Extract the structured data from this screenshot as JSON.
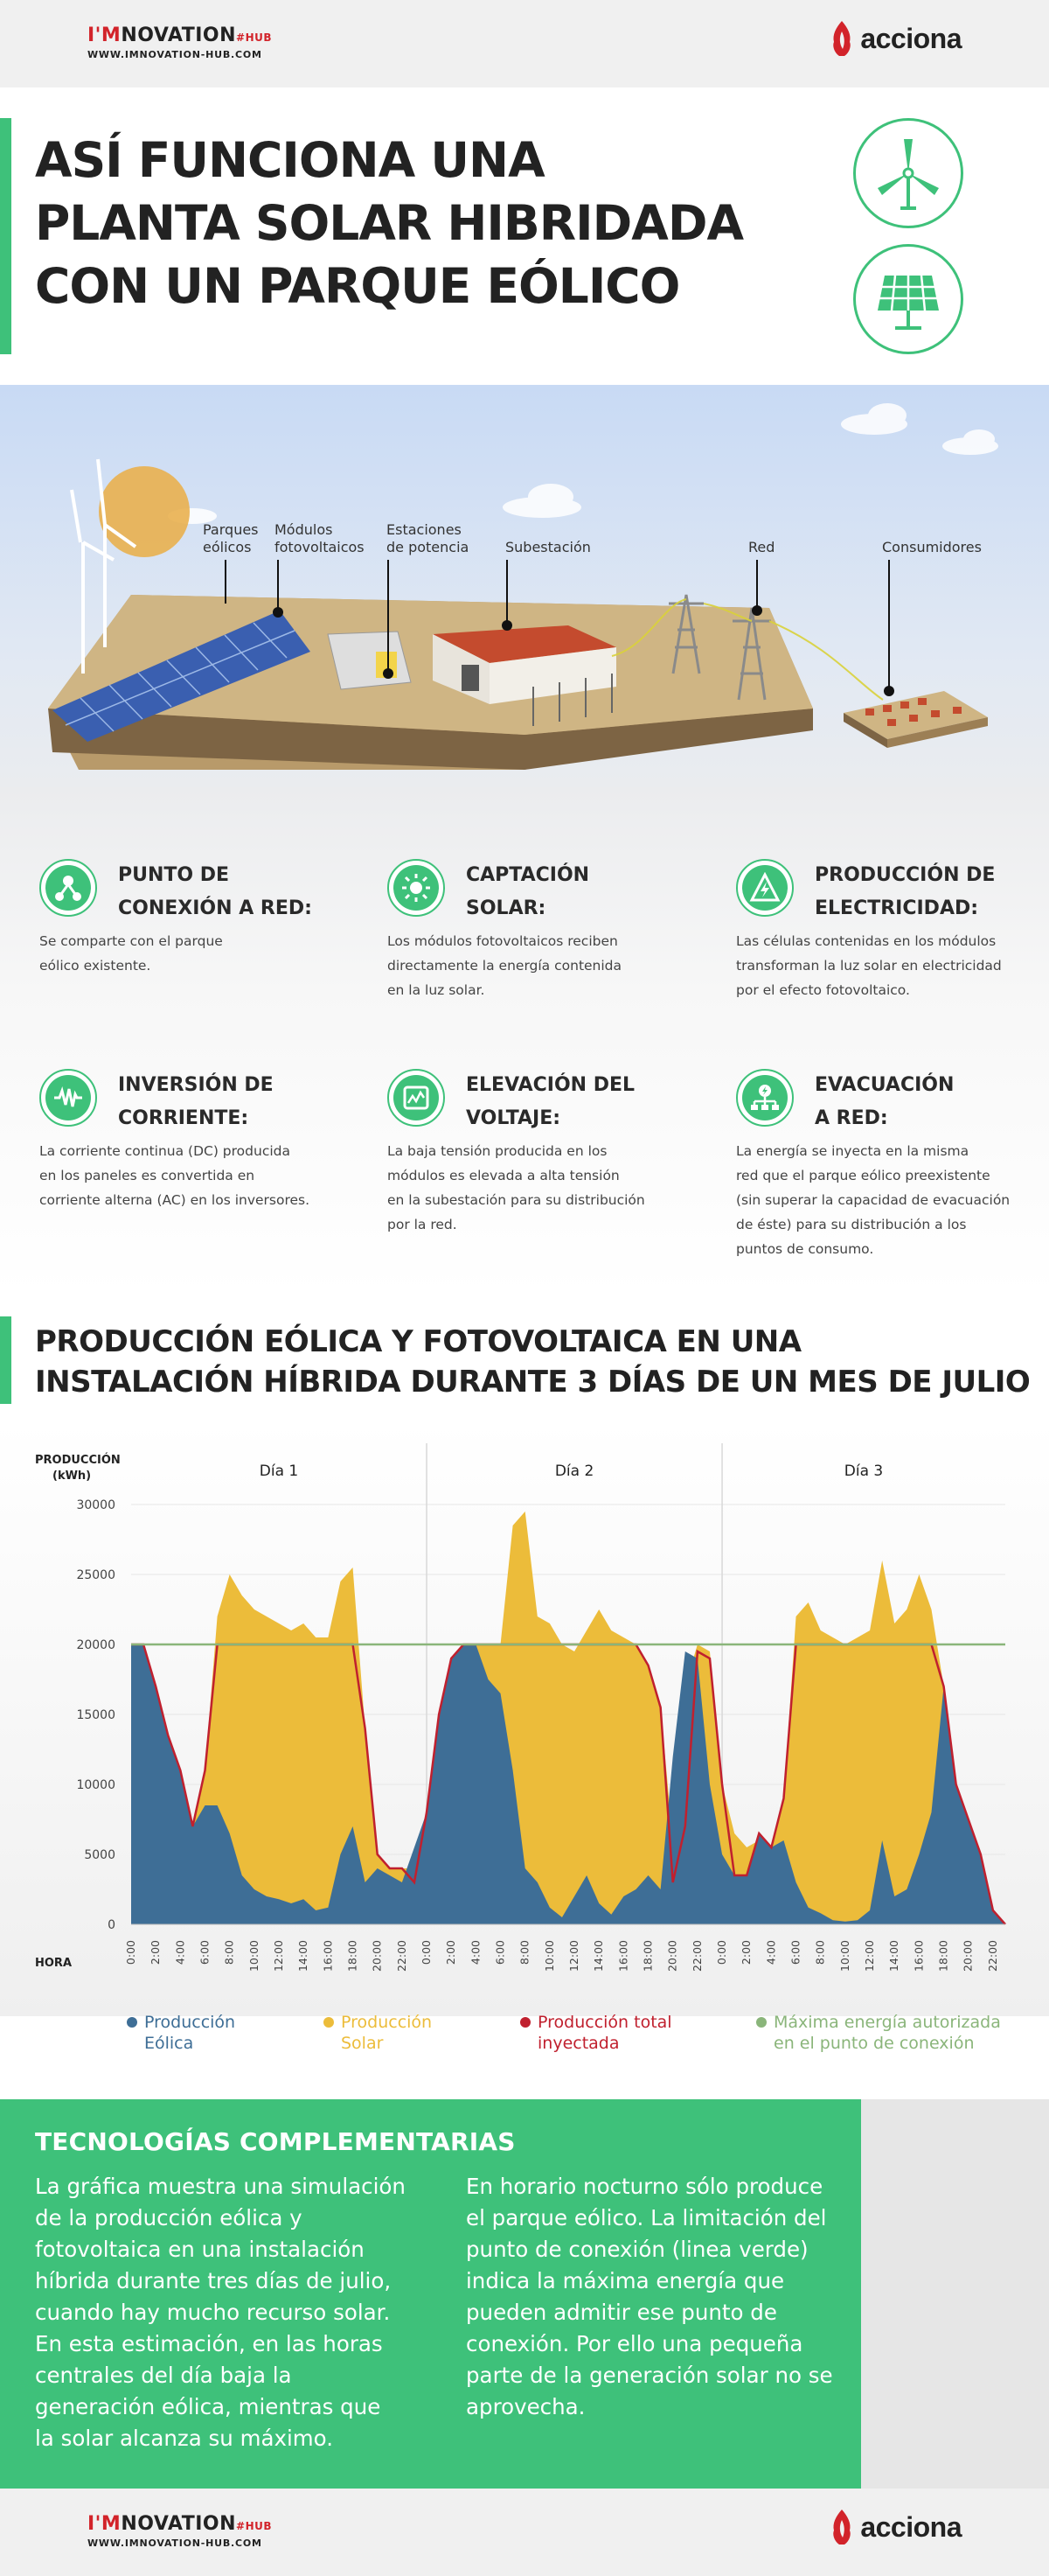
{
  "header": {
    "logo_pre": "I'M",
    "logo_main": "NOVATION",
    "logo_hub": "#HUB",
    "url": "WWW.IMNOVATION-HUB.COM",
    "acciona": "acciona"
  },
  "title": "ASÍ FUNCIONA UNA\nPLANTA SOLAR HIBRIDADA\nCON UN PARQUE EÓLICO",
  "icons": {
    "top": "wind-turbine-icon",
    "bottom": "solar-panel-icon"
  },
  "illustration": {
    "labels": [
      "Parques\neólicos",
      "Módulos\nfotovoltaicos",
      "Estaciones\nde potencia",
      "Subestación",
      "Red",
      "Consumidores"
    ]
  },
  "steps": [
    {
      "title": "PUNTO DE\nCONEXIÓN A RED:",
      "text": "Se comparte con el parque\neólico existente.",
      "icon": "network-node-icon"
    },
    {
      "title": "CAPTACIÓN\nSOLAR:",
      "text": "Los módulos fotovoltaicos reciben\ndirectamente la energía contenida\nen la luz solar.",
      "icon": "sun-icon"
    },
    {
      "title": "PRODUCCIÓN DE\nELECTRICIDAD:",
      "text": "Las células contenidas en los módulos\ntransforman la luz solar en electricidad\npor el efecto fotovoltaico.",
      "icon": "lightning-bolt-icon"
    },
    {
      "title": "INVERSIÓN DE\nCORRIENTE:",
      "text": "La corriente continua (DC) producida\nen los paneles es convertida en\ncorriente alterna (AC) en los inversores.",
      "icon": "sine-wave-icon"
    },
    {
      "title": "ELEVACIÓN DEL\nVOLTAJE:",
      "text": "La baja tensión producida en los\nmódulos es elevada a alta tensión\nen la subestación para su distribución\npor la red.",
      "icon": "transformer-icon"
    },
    {
      "title": "EVACUACIÓN\nA RED:",
      "text": "La energía se inyecta en la misma\nred que el parque eólico preexistente\n(sin superar la capacidad de evacuación\nde éste) para su distribución a los\npuntos de consumo.",
      "icon": "grid-distribution-icon"
    }
  ],
  "chart_section_title": "PRODUCCIÓN EÓLICA Y FOTOVOLTAICA EN UNA\nINSTALACIÓN HÍBRIDA DURANTE 3 DÍAS DE UN MES DE JULIO",
  "chart_data": {
    "type": "area",
    "ylabel": "PRODUCCIÓN\n(kWh)",
    "xlabel": "HORA",
    "ylim": [
      0,
      30000
    ],
    "yticks": [
      0,
      5000,
      10000,
      15000,
      20000,
      25000,
      30000
    ],
    "days": [
      "Día 1",
      "Día 2",
      "Día 3"
    ],
    "xtick_labels": [
      "0:00",
      "2:00",
      "4:00",
      "6:00",
      "8:00",
      "10:00",
      "12:00",
      "14:00",
      "16:00",
      "18:00",
      "20:00",
      "22:00"
    ],
    "x_hours": [
      0,
      1,
      2,
      3,
      4,
      5,
      6,
      7,
      8,
      9,
      10,
      11,
      12,
      13,
      14,
      15,
      16,
      17,
      18,
      19,
      20,
      21,
      22,
      23,
      24,
      25,
      26,
      27,
      28,
      29,
      30,
      31,
      32,
      33,
      34,
      35,
      36,
      37,
      38,
      39,
      40,
      41,
      42,
      43,
      44,
      45,
      46,
      47,
      48,
      49,
      50,
      51,
      52,
      53,
      54,
      55,
      56,
      57,
      58,
      59,
      60,
      61,
      62,
      63,
      64,
      65,
      66,
      67,
      68,
      69,
      70,
      71
    ],
    "series": [
      {
        "name": "Producción\nEólica",
        "color": "#3e6e96",
        "values": [
          20000,
          20000,
          17000,
          13500,
          11000,
          7000,
          8500,
          8500,
          6500,
          3500,
          2500,
          2000,
          1800,
          1500,
          1800,
          1000,
          1200,
          5000,
          7000,
          3000,
          4000,
          3500,
          3000,
          5500,
          8000,
          15000,
          19000,
          20000,
          20000,
          17500,
          16500,
          11000,
          4000,
          3000,
          1200,
          500,
          2000,
          3500,
          1500,
          700,
          2000,
          2500,
          3500,
          2500,
          12000,
          19500,
          19000,
          10000,
          5000,
          3500,
          3500,
          6500,
          5500,
          6000,
          3000,
          1200,
          800,
          300,
          200,
          300,
          1000,
          6000,
          2000,
          2500,
          5000,
          8000,
          17000,
          10000,
          7500,
          5000,
          1000,
          0
        ]
      },
      {
        "name": "Producción\nSolar",
        "color": "#ecbc3a",
        "values": [
          20000,
          20000,
          17000,
          13500,
          11000,
          7000,
          11000,
          22000,
          25000,
          23500,
          22500,
          22000,
          21500,
          21000,
          21500,
          20500,
          20500,
          24500,
          25500,
          14000,
          5000,
          4000,
          4000,
          4000,
          8000,
          15000,
          19000,
          20000,
          20000,
          20000,
          20000,
          28500,
          29500,
          22000,
          21500,
          20000,
          19500,
          21000,
          22500,
          21000,
          20500,
          20000,
          18500,
          15500,
          6000,
          17000,
          20000,
          19500,
          10000,
          6500,
          5500,
          6000,
          5500,
          9000,
          22000,
          23000,
          21000,
          20500,
          20000,
          20500,
          21000,
          26000,
          21500,
          22500,
          25000,
          22500,
          17000,
          10000,
          7500,
          5000,
          1000,
          0
        ]
      },
      {
        "name": "Producción total\ninyectada",
        "color": "#c0202e",
        "values": [
          20000,
          20000,
          17000,
          13500,
          11000,
          7000,
          11000,
          20000,
          20000,
          20000,
          20000,
          20000,
          20000,
          20000,
          20000,
          20000,
          20000,
          20000,
          20000,
          14000,
          5000,
          4000,
          4000,
          3000,
          8000,
          15000,
          19000,
          20000,
          20000,
          20000,
          20000,
          20000,
          20000,
          20000,
          20000,
          20000,
          20000,
          20000,
          20000,
          20000,
          20000,
          20000,
          18500,
          15500,
          3000,
          7000,
          19500,
          19000,
          10000,
          3500,
          3500,
          6500,
          5500,
          9000,
          20000,
          20000,
          20000,
          20000,
          20000,
          20000,
          20000,
          20000,
          20000,
          20000,
          20000,
          20000,
          17000,
          10000,
          7500,
          5000,
          1000,
          0
        ]
      },
      {
        "name": "Máxima energía autorizada\nen el punto de conexión",
        "color": "#8ab57a",
        "constant": 20000
      }
    ]
  },
  "complementary": {
    "title": "TECNOLOGÍAS COMPLEMENTARIAS",
    "left": "La gráfica muestra una simulación\nde la producción eólica y\nfotovoltaica en una instalación\nhíbrida durante tres días de julio,\ncuando hay mucho recurso solar.\nEn esta estimación, en las horas\ncentrales del día baja la\ngeneración eólica, mientras que\nla solar alcanza su máximo.",
    "right": "En horario nocturno sólo produce\nel parque eólico. La limitación del\npunto de conexión (linea verde)\nindica la máxima energía que\npueden admitir ese punto de\nconexión. Por ello una pequeña\nparte de la generación solar no se\naprovecha."
  },
  "colors": {
    "green": "#3ec17a",
    "red": "#d2232a",
    "wind": "#3e6e96",
    "solar": "#ecbc3a",
    "limit": "#8ab57a"
  }
}
